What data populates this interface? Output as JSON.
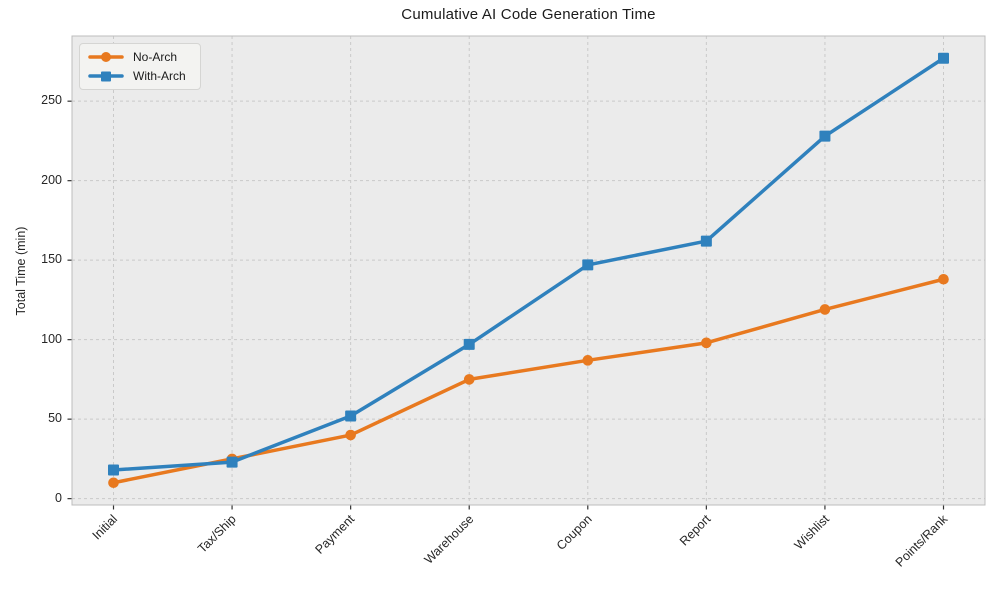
{
  "chart_data": {
    "type": "line",
    "title": "Cumulative AI Code Generation Time",
    "ylabel": "Total Time (min)",
    "xlabel": "",
    "categories": [
      "Initial",
      "Tax/Ship",
      "Payment",
      "Warehouse",
      "Coupon",
      "Report",
      "Wishlist",
      "Points/Rank"
    ],
    "series": [
      {
        "name": "No-Arch",
        "marker": "circle",
        "color": "#e8791f",
        "values": [
          10,
          25,
          40,
          75,
          87,
          98,
          119,
          138
        ]
      },
      {
        "name": "With-Arch",
        "marker": "square",
        "color": "#2f81bd",
        "values": [
          18,
          23,
          52,
          97,
          147,
          162,
          228,
          277
        ]
      }
    ],
    "yticks": [
      0,
      50,
      100,
      150,
      200,
      250
    ],
    "ylim": [
      -4,
      291
    ],
    "grid": true,
    "grid_style": "dashed",
    "legend_position": "upper-left",
    "colors": {
      "plot_background": "#ebebeb",
      "grid": "#c9c9c9",
      "spine": "#bdbdbd",
      "tick_mark": "#333333",
      "text": "#262626"
    }
  }
}
